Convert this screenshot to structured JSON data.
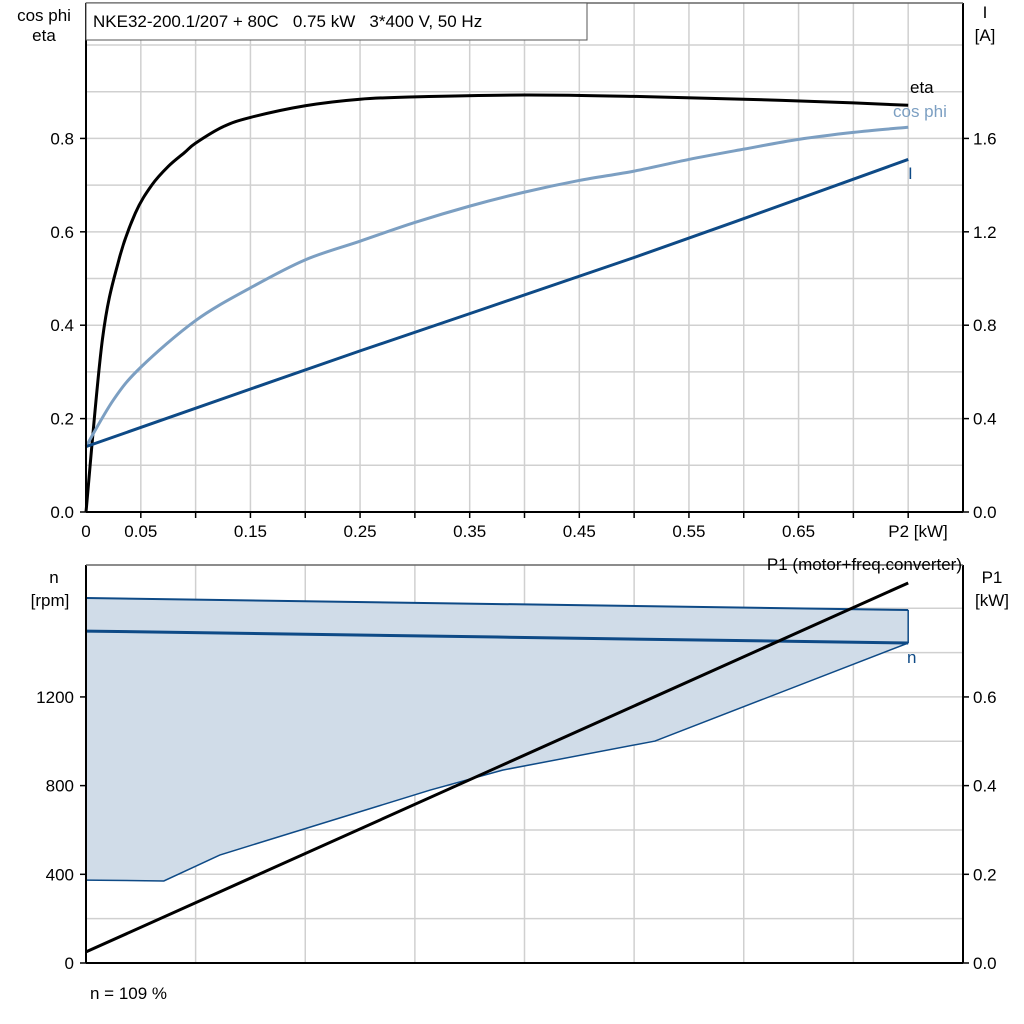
{
  "colors": {
    "eta": "#000000",
    "cos_phi": "#7c9fc2",
    "current": "#0e4a86",
    "speed": "#0e4a86",
    "band_fill": "#d0dce8",
    "p1": "#000000",
    "grid": "#d0d0d0"
  },
  "chart_data": [
    {
      "type": "line",
      "title": "NKE32-200.1/207 + 80C   0.75 kW   3*400 V, 50 Hz",
      "xlabel": "P2 [kW]",
      "xticks": [
        "0",
        "0.05",
        "0.15",
        "0.25",
        "0.35",
        "0.45",
        "0.55",
        "0.65"
      ],
      "xlim": [
        0,
        0.8
      ],
      "ylabel_left_line1": "cos phi",
      "ylabel_left_line2": "eta",
      "ylim_left": [
        0,
        1.09
      ],
      "yticks_left": [
        "0.0",
        "0.2",
        "0.4",
        "0.6",
        "0.8"
      ],
      "ylabel_right_line1": "I",
      "ylabel_right_line2": "[A]",
      "ylim_right": [
        0,
        2.18
      ],
      "yticks_right": [
        "0.0",
        "0.4",
        "0.8",
        "1.2",
        "1.6"
      ],
      "grid": true,
      "series": [
        {
          "name": "eta",
          "axis": "left",
          "points": [
            [
              0,
              0
            ],
            [
              0.015,
              0.37
            ],
            [
              0.03,
              0.54
            ],
            [
              0.045,
              0.64
            ],
            [
              0.06,
              0.7
            ],
            [
              0.075,
              0.74
            ],
            [
              0.09,
              0.77
            ],
            [
              0.1,
              0.79
            ],
            [
              0.125,
              0.825
            ],
            [
              0.15,
              0.845
            ],
            [
              0.2,
              0.87
            ],
            [
              0.25,
              0.884
            ],
            [
              0.3,
              0.889
            ],
            [
              0.4,
              0.893
            ],
            [
              0.5,
              0.89
            ],
            [
              0.6,
              0.884
            ],
            [
              0.7,
              0.876
            ],
            [
              0.75,
              0.871
            ]
          ]
        },
        {
          "name": "cos phi",
          "axis": "left",
          "points": [
            [
              0,
              0.14
            ],
            [
              0.025,
              0.24
            ],
            [
              0.05,
              0.31
            ],
            [
              0.1,
              0.41
            ],
            [
              0.15,
              0.48
            ],
            [
              0.2,
              0.54
            ],
            [
              0.25,
              0.58
            ],
            [
              0.3,
              0.62
            ],
            [
              0.35,
              0.655
            ],
            [
              0.4,
              0.685
            ],
            [
              0.45,
              0.71
            ],
            [
              0.5,
              0.73
            ],
            [
              0.55,
              0.755
            ],
            [
              0.6,
              0.777
            ],
            [
              0.65,
              0.798
            ],
            [
              0.7,
              0.813
            ],
            [
              0.75,
              0.824
            ]
          ]
        },
        {
          "name": "I",
          "axis": "right",
          "points": [
            [
              0,
              0.28
            ],
            [
              0.25,
              0.69
            ],
            [
              0.5,
              1.09
            ],
            [
              0.75,
              1.51
            ]
          ]
        }
      ]
    },
    {
      "type": "line",
      "xlim": [
        0,
        0.8
      ],
      "ylabel_left_line1": "n",
      "ylabel_left_line2": "[rpm]",
      "ylim_left": [
        0,
        1795
      ],
      "yticks_left": [
        "0",
        "400",
        "800",
        "1200"
      ],
      "ylabel_right_line1": "P1",
      "ylabel_right_line2": "[kW]",
      "ylim_right": [
        0,
        0.8975
      ],
      "yticks_right": [
        "0.0",
        "0.2",
        "0.4",
        "0.6"
      ],
      "grid": true,
      "band": {
        "upper": [
          [
            0,
            1646
          ],
          [
            0.75,
            1592
          ]
        ],
        "lower": [
          [
            0,
            374
          ],
          [
            0.071,
            370
          ],
          [
            0.122,
            487
          ],
          [
            0.314,
            780
          ],
          [
            0.38,
            870
          ],
          [
            0.519,
            1001
          ],
          [
            0.75,
            1443
          ]
        ]
      },
      "series": [
        {
          "name": "n",
          "axis": "left",
          "points": [
            [
              0,
              1497
            ],
            [
              0.75,
              1443
            ]
          ]
        },
        {
          "name": "P1 (motor+freq.converter)",
          "axis": "right",
          "points": [
            [
              0,
              0.025
            ],
            [
              0.75,
              0.857
            ]
          ]
        }
      ],
      "annotation": "n = 109 %"
    }
  ]
}
